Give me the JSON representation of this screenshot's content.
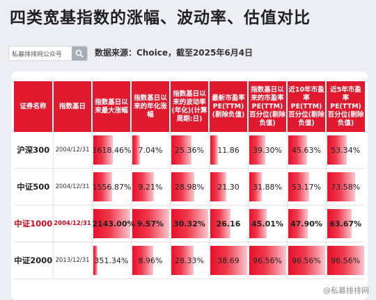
{
  "header": {
    "title": "四类宽基指数的涨幅、波动率、估值对比",
    "search_text": "私募排排网公众号",
    "source": "数据来源：Choice，截至2025年6月4日"
  },
  "table": {
    "columns": [
      "证券名称",
      "指数基日",
      "指数基日以来最大涨幅",
      "指数基日以来的年化涨幅",
      "指数基日以来的波动率(年化)(计算周期:日)",
      "最新市盈率PE(TTM)(剔除负值)",
      "指数基日以来的市盈率PE(TTM)百分位(剔除负值)",
      "近10年市盈率PE(TTM)百分位(剔除负值)",
      "近5年市盈率PE(TTM)百分位(剔除负值)"
    ],
    "rows": [
      {
        "name": "沪深300",
        "date": "2004/12/31",
        "highlight": false,
        "values": [
          "1618.46%",
          "7.04%",
          "25.36%",
          "11.86",
          "39.30%",
          "45.63%",
          "53.34%"
        ],
        "fills": [
          0.52,
          0.21,
          0.55,
          0.21,
          0.44,
          0.5,
          0.53
        ]
      },
      {
        "name": "中证500",
        "date": "2004/12/31",
        "highlight": false,
        "values": [
          "1556.87%",
          "9.21%",
          "28.98%",
          "21.30",
          "31.88%",
          "53.17%",
          "73.58%"
        ],
        "fills": [
          0.5,
          0.58,
          0.62,
          0.43,
          0.35,
          0.57,
          0.75
        ]
      },
      {
        "name": "中证1000",
        "date": "2004/12/31",
        "highlight": true,
        "values": [
          "2143.00%",
          "9.57%",
          "30.32%",
          "26.16",
          "45.01%",
          "47.90%",
          "63.67%"
        ],
        "fills": [
          0.99,
          0.99,
          0.99,
          0.55,
          0.48,
          0.52,
          0.66
        ]
      },
      {
        "name": "中证2000",
        "date": "2013/12/31",
        "highlight": false,
        "values": [
          "351.34%",
          "8.96%",
          "28.33%",
          "38.69",
          "96.56%",
          "96.56%",
          "96.56%"
        ],
        "fills": [
          0.12,
          0.56,
          0.6,
          0.99,
          0.99,
          0.99,
          0.99
        ]
      }
    ]
  },
  "footer": {
    "watermark": "@私募排排网"
  }
}
